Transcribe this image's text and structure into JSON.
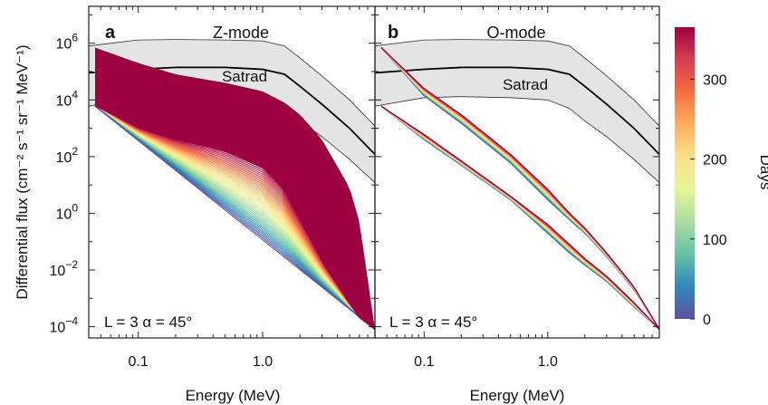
{
  "figure": {
    "ylabel": "Differential flux (cm⁻² s⁻¹ sr⁻¹ MeV⁻¹)",
    "xlabel": "Energy (MeV)",
    "colorbar": {
      "label": "Days",
      "range": [
        0,
        365
      ],
      "ticks": [
        "0",
        "100",
        "200",
        "300"
      ],
      "tick_values": [
        0,
        100,
        200,
        300
      ],
      "colormap": [
        "#5e4fa2",
        "#3288bd",
        "#66c2a5",
        "#abdda4",
        "#e6f598",
        "#fee08b",
        "#fdae61",
        "#f46d43",
        "#d53e4f",
        "#9e0142"
      ]
    }
  },
  "chart_data": [
    {
      "type": "area",
      "panel": "a",
      "title": "Z-mode",
      "annotation": "L = 3 α = 45°",
      "x_scale": "log",
      "y_scale": "log",
      "xlim": [
        0.04,
        8
      ],
      "ylim": [
        4e-05,
        20000000
      ],
      "x_ticks": [
        {
          "value": 0.1,
          "label": "0.1"
        },
        {
          "value": 1.0,
          "label": "1.0"
        }
      ],
      "y_ticks": [
        {
          "value": 1000000,
          "label": "10",
          "exp": "6"
        },
        {
          "value": 10000,
          "label": "10",
          "exp": "4"
        },
        {
          "value": 100,
          "label": "10",
          "exp": "2"
        },
        {
          "value": 1,
          "label": "10",
          "exp": "0"
        },
        {
          "value": 0.01,
          "label": "10",
          "exp": "−2"
        },
        {
          "value": 0.0001,
          "label": "10",
          "exp": "−4"
        }
      ],
      "satrad": {
        "label": "Satrad",
        "x": [
          0.04,
          0.1,
          0.2,
          0.5,
          1.0,
          1.5,
          2.0,
          3.0,
          5.0,
          8.0
        ],
        "upper": [
          800000,
          1300000,
          1350000,
          1300000,
          1200000,
          800000,
          300000,
          70000,
          10000,
          1200
        ],
        "median": [
          90000,
          120000,
          140000,
          140000,
          120000,
          80000,
          30000,
          7000,
          1000,
          120
        ],
        "lower": [
          6000,
          12000,
          13000,
          12000,
          10000,
          5000,
          1800,
          500,
          80,
          12
        ]
      },
      "initial": {
        "x": [
          0.045,
          8.0
        ],
        "y": [
          6000,
          8e-05
        ]
      },
      "final_envelope": {
        "x": [
          0.045,
          0.1,
          0.2,
          0.5,
          1.0,
          1.5,
          2.0,
          3.0,
          5.0,
          6.0,
          8.0
        ],
        "upper": [
          700000,
          200000,
          80000,
          40000,
          20000,
          8000,
          3000,
          400,
          8,
          0.5,
          8e-05
        ],
        "lower": [
          6000,
          1000,
          400,
          150,
          40,
          6,
          0.6,
          0.02,
          0.0006,
          0.0002,
          8e-05
        ]
      }
    },
    {
      "type": "line",
      "panel": "b",
      "title": "O-mode",
      "annotation": "L = 3 α = 45°",
      "x_scale": "log",
      "y_scale": "log",
      "xlim": [
        0.04,
        8
      ],
      "ylim": [
        4e-05,
        20000000
      ],
      "x_ticks": [
        {
          "value": 0.1,
          "label": "0.1"
        },
        {
          "value": 1.0,
          "label": "1.0"
        }
      ],
      "satrad": {
        "label": "Satrad",
        "x": [
          0.04,
          0.1,
          0.2,
          0.5,
          1.0,
          1.5,
          2.0,
          3.0,
          5.0,
          8.0
        ],
        "upper": [
          800000,
          1300000,
          1350000,
          1300000,
          1200000,
          800000,
          300000,
          70000,
          10000,
          1200
        ],
        "median": [
          90000,
          120000,
          140000,
          140000,
          120000,
          80000,
          30000,
          7000,
          1000,
          120
        ],
        "lower": [
          6000,
          12000,
          13000,
          12000,
          10000,
          5000,
          1800,
          500,
          80,
          12
        ]
      },
      "bands": [
        {
          "x": [
            0.045,
            0.1,
            0.2,
            0.5,
            1.0,
            1.5,
            2.0,
            3.0,
            5.0,
            8.0
          ],
          "start": [
            700000,
            14000,
            1500,
            60,
            3,
            0.6,
            0.2,
            0.03,
            0.002,
            8e-05
          ],
          "end": [
            700000,
            25000,
            3000,
            120,
            7,
            1.0,
            0.3,
            0.04,
            0.0025,
            8e-05
          ]
        },
        {
          "x": [
            0.045,
            0.1,
            0.2,
            0.5,
            1.0,
            1.5,
            2.0,
            3.0,
            5.0,
            8.0
          ],
          "start": [
            6000,
            400,
            50,
            3,
            0.2,
            0.04,
            0.015,
            0.004,
            0.0005,
            8e-05
          ],
          "end": [
            6000,
            600,
            70,
            4,
            0.4,
            0.08,
            0.025,
            0.006,
            0.0007,
            8e-05
          ]
        }
      ]
    }
  ]
}
